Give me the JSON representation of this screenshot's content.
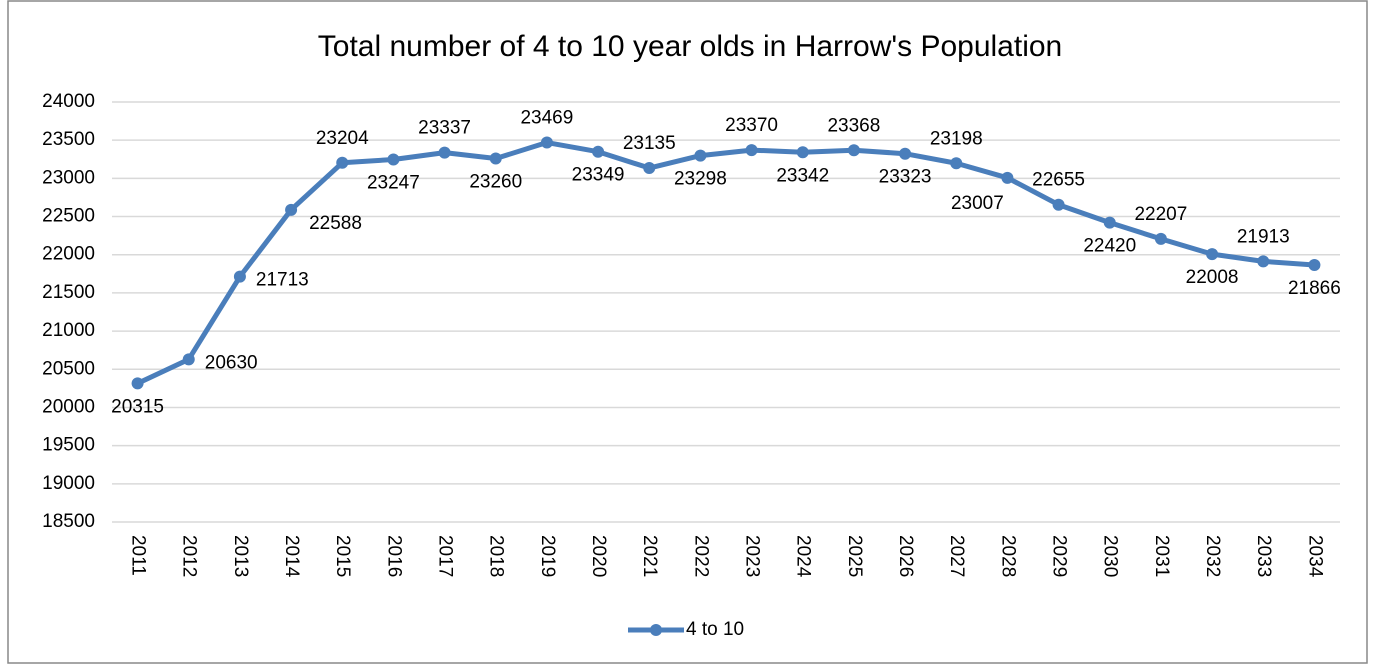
{
  "chart_data": {
    "type": "line",
    "title": "Total number of 4 to 10 year olds in Harrow's Population",
    "categories": [
      "2011",
      "2012",
      "2013",
      "2014",
      "2015",
      "2016",
      "2017",
      "2018",
      "2019",
      "2020",
      "2021",
      "2022",
      "2023",
      "2024",
      "2025",
      "2026",
      "2027",
      "2028",
      "2029",
      "2030",
      "2031",
      "2032",
      "2033",
      "2034"
    ],
    "series": [
      {
        "name": "4 to 10",
        "color": "#4a7ebb",
        "values": [
          20315,
          20630,
          21713,
          22588,
          23204,
          23247,
          23337,
          23260,
          23469,
          23349,
          23135,
          23298,
          23370,
          23342,
          23368,
          23323,
          23198,
          23007,
          22655,
          22420,
          22207,
          22008,
          21913,
          21866
        ]
      }
    ],
    "ylim": [
      18500,
      24000
    ],
    "yticks": [
      18500,
      19000,
      19500,
      20000,
      20500,
      21000,
      21500,
      22000,
      22500,
      23000,
      23500,
      24000
    ],
    "grid": true,
    "legend": "bottom"
  }
}
